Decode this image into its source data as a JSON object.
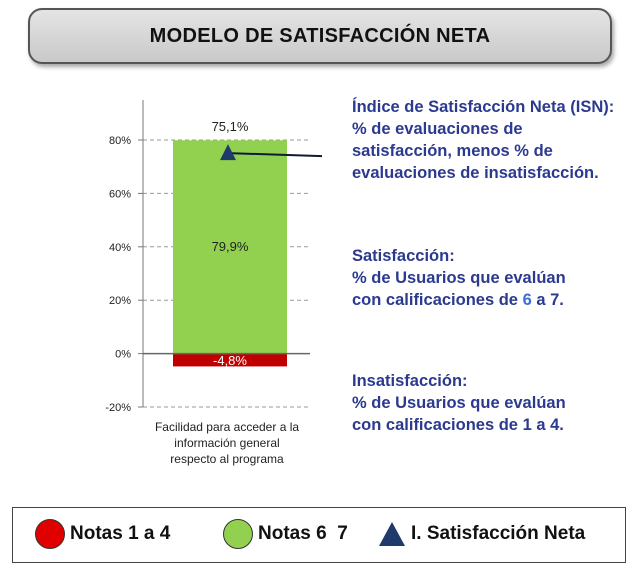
{
  "header": {
    "title": "MODELO DE SATISFACCIÓN NETA"
  },
  "chart_data": {
    "type": "bar",
    "categories": [
      "Facilidad para acceder a la información general respecto al programa"
    ],
    "category_label_lines": [
      "Facilidad para acceder a la",
      "información general",
      "respecto al programa"
    ],
    "series": [
      {
        "name": "Notas 6  7",
        "values": [
          79.9
        ],
        "color": "#92d050"
      },
      {
        "name": "Notas 1 a 4",
        "values": [
          -4.8
        ],
        "color": "#c00000"
      }
    ],
    "net_index": {
      "name": "I. Satisfacción Neta",
      "values": [
        75.1
      ],
      "color": "#1f3a6b"
    },
    "data_labels": {
      "positive": "79,9%",
      "negative": "-4,8%",
      "net": "75,1%"
    },
    "ylim": [
      -20,
      80
    ],
    "yticks": [
      -20,
      0,
      20,
      40,
      60,
      80
    ],
    "ytick_labels": [
      "-20%",
      "0%",
      "20%",
      "40%",
      "60%",
      "80%"
    ],
    "grid": true,
    "legend_position": "bottom"
  },
  "annotations": {
    "isn": {
      "lines": [
        "Índice de Satisfacción Neta (ISN):",
        "% de evaluaciones de",
        "satisfacción, menos % de",
        "evaluaciones de insatisfacción."
      ]
    },
    "satisfaccion": {
      "l1": "Satisfacción:",
      "l2": "% de Usuarios que evalúan",
      "l3_pre": "con calificaciones de ",
      "l3_num": "6",
      "l3_post": " a 7."
    },
    "insatisfaccion": {
      "l1": "Insatisfacción:",
      "l2": "% de Usuarios que evalúan",
      "l3": "con calificaciones de 1 a 4."
    }
  },
  "legend": {
    "items": [
      {
        "label": "Notas 1 a 4",
        "color": "#e00000",
        "icon": "red-circle-icon"
      },
      {
        "label": "Notas 6  7",
        "color": "#92d050",
        "icon": "green-circle-icon"
      },
      {
        "label": "I. Satisfacción Neta",
        "color": "#1f3a6b",
        "icon": "triangle-icon"
      }
    ]
  }
}
